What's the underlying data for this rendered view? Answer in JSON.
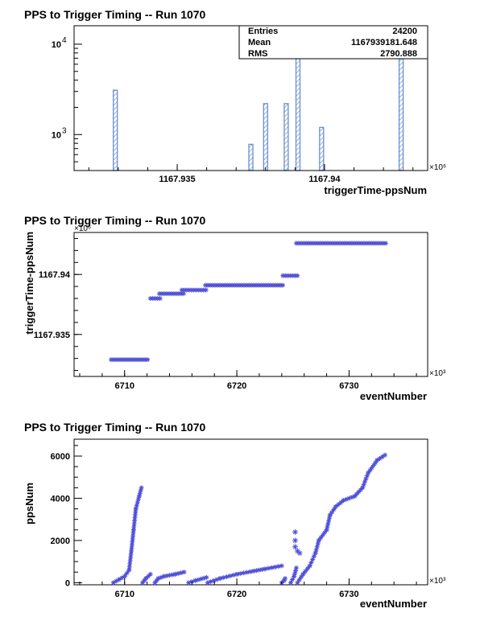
{
  "chart_data": [
    {
      "type": "bar",
      "title": "PPS to Trigger Timing -- Run 1070",
      "xlabel": "triggerTime-ppsNum",
      "ylabel": "",
      "x_multiplier": "×10⁶",
      "y_scale": "log",
      "ylim": [
        400,
        16000
      ],
      "xlim": [
        1167.9315,
        1167.9435
      ],
      "x_ticks": [
        {
          "value": 1167.935,
          "label": "1167.935"
        },
        {
          "value": 1167.94,
          "label": "1167.94"
        }
      ],
      "y_ticks": [
        {
          "value": 1000,
          "label": "10",
          "exp": "3"
        },
        {
          "value": 10000,
          "label": "10",
          "exp": "4"
        }
      ],
      "bins": [
        {
          "x": 1167.9329,
          "value": 3100
        },
        {
          "x": 1167.9375,
          "value": 780
        },
        {
          "x": 1167.938,
          "value": 2200
        },
        {
          "x": 1167.9387,
          "value": 2200
        },
        {
          "x": 1167.9391,
          "value": 6900
        },
        {
          "x": 1167.9399,
          "value": 1200
        },
        {
          "x": 1167.9426,
          "value": 6900
        }
      ],
      "stats": [
        {
          "label": "Entries",
          "value": "24200"
        },
        {
          "label": "Mean",
          "value": "1167939181.648"
        },
        {
          "label": "RMS",
          "value": "2790.888"
        }
      ],
      "colors": {
        "bar": "#6a8fd0"
      }
    },
    {
      "type": "scatter",
      "title": "PPS to Trigger Timing -- Run 1070",
      "xlabel": "eventNumber",
      "ylabel": "triggerTime-ppsNum",
      "x_multiplier": "×10³",
      "y_multiplier": "×10⁶",
      "xlim": [
        6705.5,
        6737
      ],
      "ylim": [
        1167.9315,
        1167.9435
      ],
      "x_ticks": [
        {
          "value": 6710,
          "label": "6710"
        },
        {
          "value": 6720,
          "label": "6720"
        },
        {
          "value": 6730,
          "label": "6730"
        }
      ],
      "y_ticks": [
        {
          "value": 1167.935,
          "label": "1167.935"
        },
        {
          "value": 1167.94,
          "label": "1167.94"
        }
      ],
      "segments": [
        {
          "x0": 6708.8,
          "x1": 6712.2,
          "y": 1167.9329
        },
        {
          "x0": 6712.3,
          "x1": 6713.2,
          "y": 1167.938
        },
        {
          "x0": 6713.1,
          "x1": 6715.3,
          "y": 1167.9384
        },
        {
          "x0": 6715.1,
          "x1": 6717.3,
          "y": 1167.9387
        },
        {
          "x0": 6717.2,
          "x1": 6724.1,
          "y": 1167.9391
        },
        {
          "x0": 6724.1,
          "x1": 6725.5,
          "y": 1167.9399
        },
        {
          "x0": 6725.3,
          "x1": 6733.3,
          "y": 1167.9426
        }
      ],
      "colors": {
        "marker": "#5050d8"
      }
    },
    {
      "type": "scatter",
      "title": "PPS to Trigger Timing -- Run 1070",
      "xlabel": "eventNumber",
      "ylabel": "ppsNum",
      "x_multiplier": "×10³",
      "xlim": [
        6705.5,
        6737
      ],
      "ylim": [
        -100,
        6800
      ],
      "x_ticks": [
        {
          "value": 6710,
          "label": "6710"
        },
        {
          "value": 6720,
          "label": "6720"
        },
        {
          "value": 6730,
          "label": "6730"
        }
      ],
      "y_ticks": [
        {
          "value": 0,
          "label": "0"
        },
        {
          "value": 2000,
          "label": "2000"
        },
        {
          "value": 4000,
          "label": "4000"
        },
        {
          "value": 6000,
          "label": "6000"
        }
      ],
      "curves": [
        {
          "points": [
            [
              6709.0,
              0
            ],
            [
              6709.5,
              150
            ],
            [
              6710.0,
              300
            ],
            [
              6710.4,
              600
            ],
            [
              6710.6,
              1500
            ],
            [
              6710.8,
              2500
            ],
            [
              6711.0,
              3500
            ],
            [
              6711.3,
              4100
            ],
            [
              6711.5,
              4500
            ]
          ]
        },
        {
          "points": [
            [
              6711.6,
              0
            ],
            [
              6711.9,
              200
            ],
            [
              6712.3,
              400
            ]
          ]
        },
        {
          "points": [
            [
              6712.7,
              0
            ],
            [
              6713.0,
              200
            ],
            [
              6713.5,
              300
            ],
            [
              6714.5,
              400
            ],
            [
              6715.3,
              500
            ]
          ]
        },
        {
          "points": [
            [
              6715.7,
              0
            ],
            [
              6716.3,
              100
            ],
            [
              6717.3,
              250
            ]
          ]
        },
        {
          "points": [
            [
              6717.4,
              0
            ],
            [
              6718.5,
              200
            ],
            [
              6720.0,
              400
            ],
            [
              6721.5,
              550
            ],
            [
              6722.5,
              650
            ],
            [
              6724.0,
              800
            ]
          ]
        },
        {
          "points": [
            [
              6724.0,
              0
            ],
            [
              6724.2,
              100
            ],
            [
              6724.3,
              200
            ]
          ]
        },
        {
          "points": [
            [
              6724.8,
              0
            ],
            [
              6725.1,
              300
            ],
            [
              6725.3,
              700
            ]
          ]
        },
        {
          "points": [
            [
              6725.4,
              0
            ],
            [
              6725.9,
              400
            ],
            [
              6726.5,
              800
            ],
            [
              6727.0,
              1400
            ],
            [
              6727.3,
              2000
            ],
            [
              6728.0,
              2500
            ],
            [
              6728.3,
              3200
            ],
            [
              6728.8,
              3600
            ],
            [
              6729.5,
              3900
            ],
            [
              6730.5,
              4100
            ],
            [
              6731.2,
              4500
            ],
            [
              6731.7,
              5200
            ],
            [
              6732.5,
              5800
            ],
            [
              6733.2,
              6050
            ]
          ]
        }
      ],
      "outliers": [
        {
          "x": 6725.2,
          "y": 2400
        },
        {
          "x": 6725.2,
          "y": 2000
        },
        {
          "x": 6725.2,
          "y": 1700
        },
        {
          "x": 6725.4,
          "y": 1500
        },
        {
          "x": 6725.6,
          "y": 1400
        }
      ],
      "colors": {
        "marker": "#5050d8"
      }
    }
  ]
}
